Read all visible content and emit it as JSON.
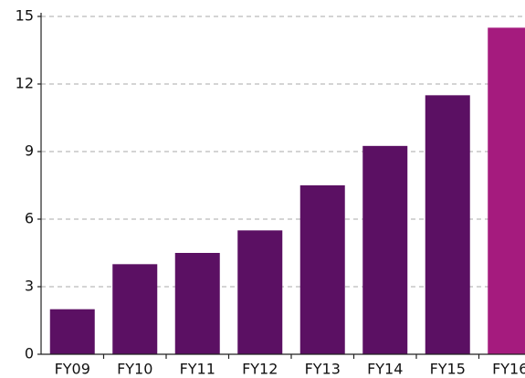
{
  "chart_data": {
    "type": "bar",
    "categories": [
      "FY09",
      "FY10",
      "FY11",
      "FY12",
      "FY13",
      "FY14",
      "FY15",
      "FY16"
    ],
    "values": [
      2,
      4,
      4.5,
      5.5,
      7.5,
      9.25,
      11.5,
      14.5
    ],
    "colors": [
      "#5b1063",
      "#5b1063",
      "#5b1063",
      "#5b1063",
      "#5b1063",
      "#5b1063",
      "#5b1063",
      "#a51b7e"
    ],
    "ylim": [
      0,
      15
    ],
    "yticks": [
      0,
      3,
      6,
      9,
      12,
      15
    ],
    "grid": true
  }
}
